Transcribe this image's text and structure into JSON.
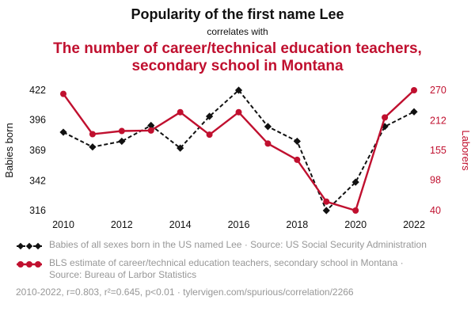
{
  "header": {
    "title": "Popularity of the first name Lee",
    "connector": "correlates with",
    "red_title": "The number of career/technical education teachers, secondary school in Montana"
  },
  "axes": {
    "left_label": "Babies born",
    "right_label": "Laborers"
  },
  "legend": {
    "items": [
      {
        "id": "babies",
        "label": "Babies of all sexes born in the US named Lee · Source: US Social Security Administration"
      },
      {
        "id": "laborers",
        "label": "BLS estimate of career/technical education teachers, secondary school in Montana · Source: Bureau of Larbor Statistics"
      }
    ]
  },
  "footer": {
    "stats": "2010-2022, r=0.803, r²=0.645, p<0.01 · tylervigen.com/spurious/correlation/2266"
  },
  "colors": {
    "accent_red": "#c0102f",
    "series_black": "#111111",
    "muted_gray": "#979797"
  },
  "chart_data": {
    "type": "line",
    "title": "Popularity of the first name Lee correlates with The number of career/technical education teachers, secondary school in Montana",
    "x": [
      2010,
      2011,
      2012,
      2013,
      2014,
      2015,
      2016,
      2017,
      2018,
      2019,
      2020,
      2021,
      2022
    ],
    "x_ticks": [
      2010,
      2012,
      2014,
      2016,
      2018,
      2020,
      2022
    ],
    "left_axis": {
      "label": "Babies born",
      "ticks": [
        316,
        342,
        369,
        396,
        422
      ],
      "range": [
        316,
        422
      ]
    },
    "right_axis": {
      "label": "Laborers",
      "ticks": [
        40,
        98,
        155,
        212,
        270
      ],
      "range": [
        40,
        270
      ]
    },
    "grid": false,
    "legend_position": "bottom",
    "series": [
      {
        "id": "babies",
        "name": "Babies of all sexes born in the US named Lee",
        "axis": "left",
        "color": "#111111",
        "style": "dashed",
        "marker": "diamond",
        "values": [
          385,
          372,
          377,
          391,
          371,
          399,
          422,
          390,
          377,
          316,
          341,
          390,
          403
        ]
      },
      {
        "id": "laborers",
        "name": "BLS estimate of career/technical education teachers, secondary school in Montana",
        "axis": "right",
        "color": "#c0102f",
        "style": "solid",
        "marker": "circle",
        "values": [
          263,
          186,
          192,
          193,
          228,
          185,
          228,
          168,
          137,
          57,
          40,
          218,
          270
        ]
      }
    ]
  }
}
